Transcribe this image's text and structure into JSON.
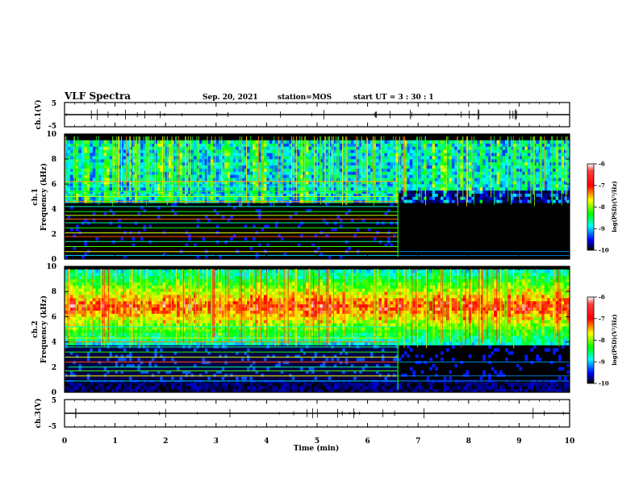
{
  "header": {
    "title": "VLF Spectra",
    "date": "Sep. 20, 2021",
    "station": "station=MOS",
    "start": "start  UT =   3 : 30 : 1"
  },
  "chart_data": [
    {
      "type": "line",
      "name": "ch1-waveform",
      "ylabel": "ch.1(V)",
      "ylim": [
        -5,
        5
      ],
      "yticks": [
        "5",
        "-5"
      ],
      "xlim": [
        0,
        10
      ],
      "series": [
        {
          "values": [
            0,
            0
          ]
        }
      ]
    },
    {
      "type": "heatmap",
      "name": "ch1-spectrogram",
      "ylabel": "ch.1\nFrequency (kHz)",
      "ylabel_ch": "ch.1",
      "ylabel_freq": "Frequency (kHz)",
      "xlim": [
        0,
        10
      ],
      "ylim": [
        0,
        10
      ],
      "yticks": [
        "0",
        "2",
        "4",
        "6",
        "8",
        "10"
      ],
      "colorbar": {
        "label": "log(PSD)(V²/Hz)",
        "range": [
          -10,
          -6
        ],
        "ticks": [
          "-6",
          "-7",
          "-8",
          "-9",
          "-10"
        ]
      },
      "noise_band_khz": [
        4.5,
        9.8
      ],
      "noise_band_after_6_7min_khz": [
        4.2,
        9.8
      ],
      "interference_lines_end_min": 6.6,
      "gap_after_min": 6.6
    },
    {
      "type": "heatmap",
      "name": "ch2-spectrogram",
      "ylabel": "ch.2\nFrequency (kHz)",
      "ylabel_ch": "ch.2",
      "ylabel_freq": "Frequency (kHz)",
      "xlim": [
        0,
        10
      ],
      "ylim": [
        0,
        10
      ],
      "yticks": [
        "0",
        "2",
        "4",
        "6",
        "8",
        "10"
      ],
      "colorbar": {
        "label": "log(PSD)(V²/Hz)",
        "range": [
          -10,
          -6
        ],
        "ticks": [
          "-6",
          "-7",
          "-8",
          "-9",
          "-10"
        ]
      },
      "peak_band_khz": [
        5.5,
        8.0
      ],
      "interference_lines_end_min": 6.6
    },
    {
      "type": "line",
      "name": "ch3-waveform",
      "ylabel": "ch.3(V)",
      "ylim": [
        -5,
        5
      ],
      "yticks": [
        "5",
        "-5"
      ],
      "xlim": [
        0,
        10
      ],
      "xlabel": "Time  (min)",
      "xticks": [
        "0",
        "1",
        "2",
        "3",
        "4",
        "5",
        "6",
        "7",
        "8",
        "9",
        "10"
      ],
      "series": [
        {
          "values": [
            0,
            0
          ]
        }
      ]
    }
  ],
  "colors": {
    "background": "#ffffff",
    "axes": "#000000",
    "cmap": [
      "#000000",
      "#0000ff",
      "#00ffff",
      "#00ff00",
      "#ffff00",
      "#ff0000",
      "#ffffff"
    ]
  }
}
